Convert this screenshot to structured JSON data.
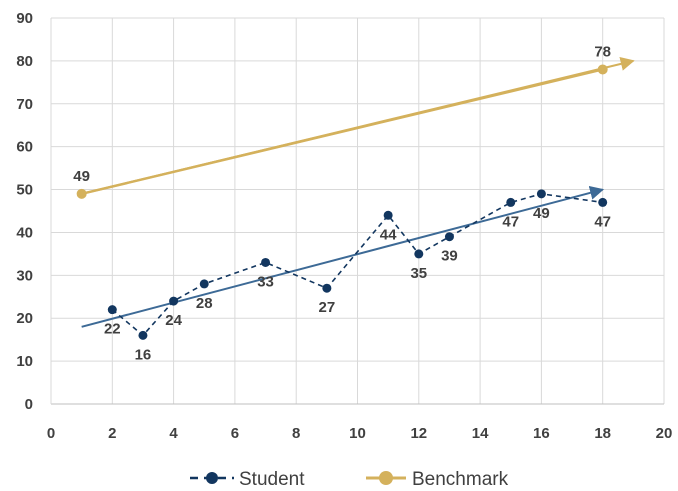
{
  "chart_data": {
    "type": "scatter",
    "title": "",
    "xlabel": "",
    "ylabel": "",
    "xlim": [
      0,
      20
    ],
    "ylim": [
      0,
      90
    ],
    "x_ticks": [
      0,
      2,
      4,
      6,
      8,
      10,
      12,
      14,
      16,
      18,
      20
    ],
    "y_ticks": [
      0,
      10,
      20,
      30,
      40,
      50,
      60,
      70,
      80,
      90
    ],
    "grid": true,
    "legend_position": "bottom",
    "series": [
      {
        "name": "Student",
        "color": "#12365f",
        "line_style": "dashed",
        "marker": "circle",
        "points": [
          {
            "x": 2,
            "y": 22
          },
          {
            "x": 3,
            "y": 16
          },
          {
            "x": 4,
            "y": 24
          },
          {
            "x": 5,
            "y": 28
          },
          {
            "x": 7,
            "y": 33
          },
          {
            "x": 9,
            "y": 27
          },
          {
            "x": 11,
            "y": 44
          },
          {
            "x": 12,
            "y": 35
          },
          {
            "x": 13,
            "y": 39
          },
          {
            "x": 15,
            "y": 47
          },
          {
            "x": 16,
            "y": 49
          },
          {
            "x": 18,
            "y": 47
          }
        ],
        "trendline": {
          "color": "#3d6a96",
          "x": [
            1,
            18
          ],
          "y": [
            18,
            50
          ],
          "arrow": true
        }
      },
      {
        "name": "Benchmark",
        "color": "#d4b15c",
        "line_style": "solid",
        "marker": "circle",
        "points": [
          {
            "x": 1,
            "y": 49
          },
          {
            "x": 18,
            "y": 78
          }
        ],
        "trendline": {
          "color": "#d4b15c",
          "x": [
            1,
            19
          ],
          "y": [
            49,
            80
          ],
          "arrow": true
        }
      }
    ]
  }
}
